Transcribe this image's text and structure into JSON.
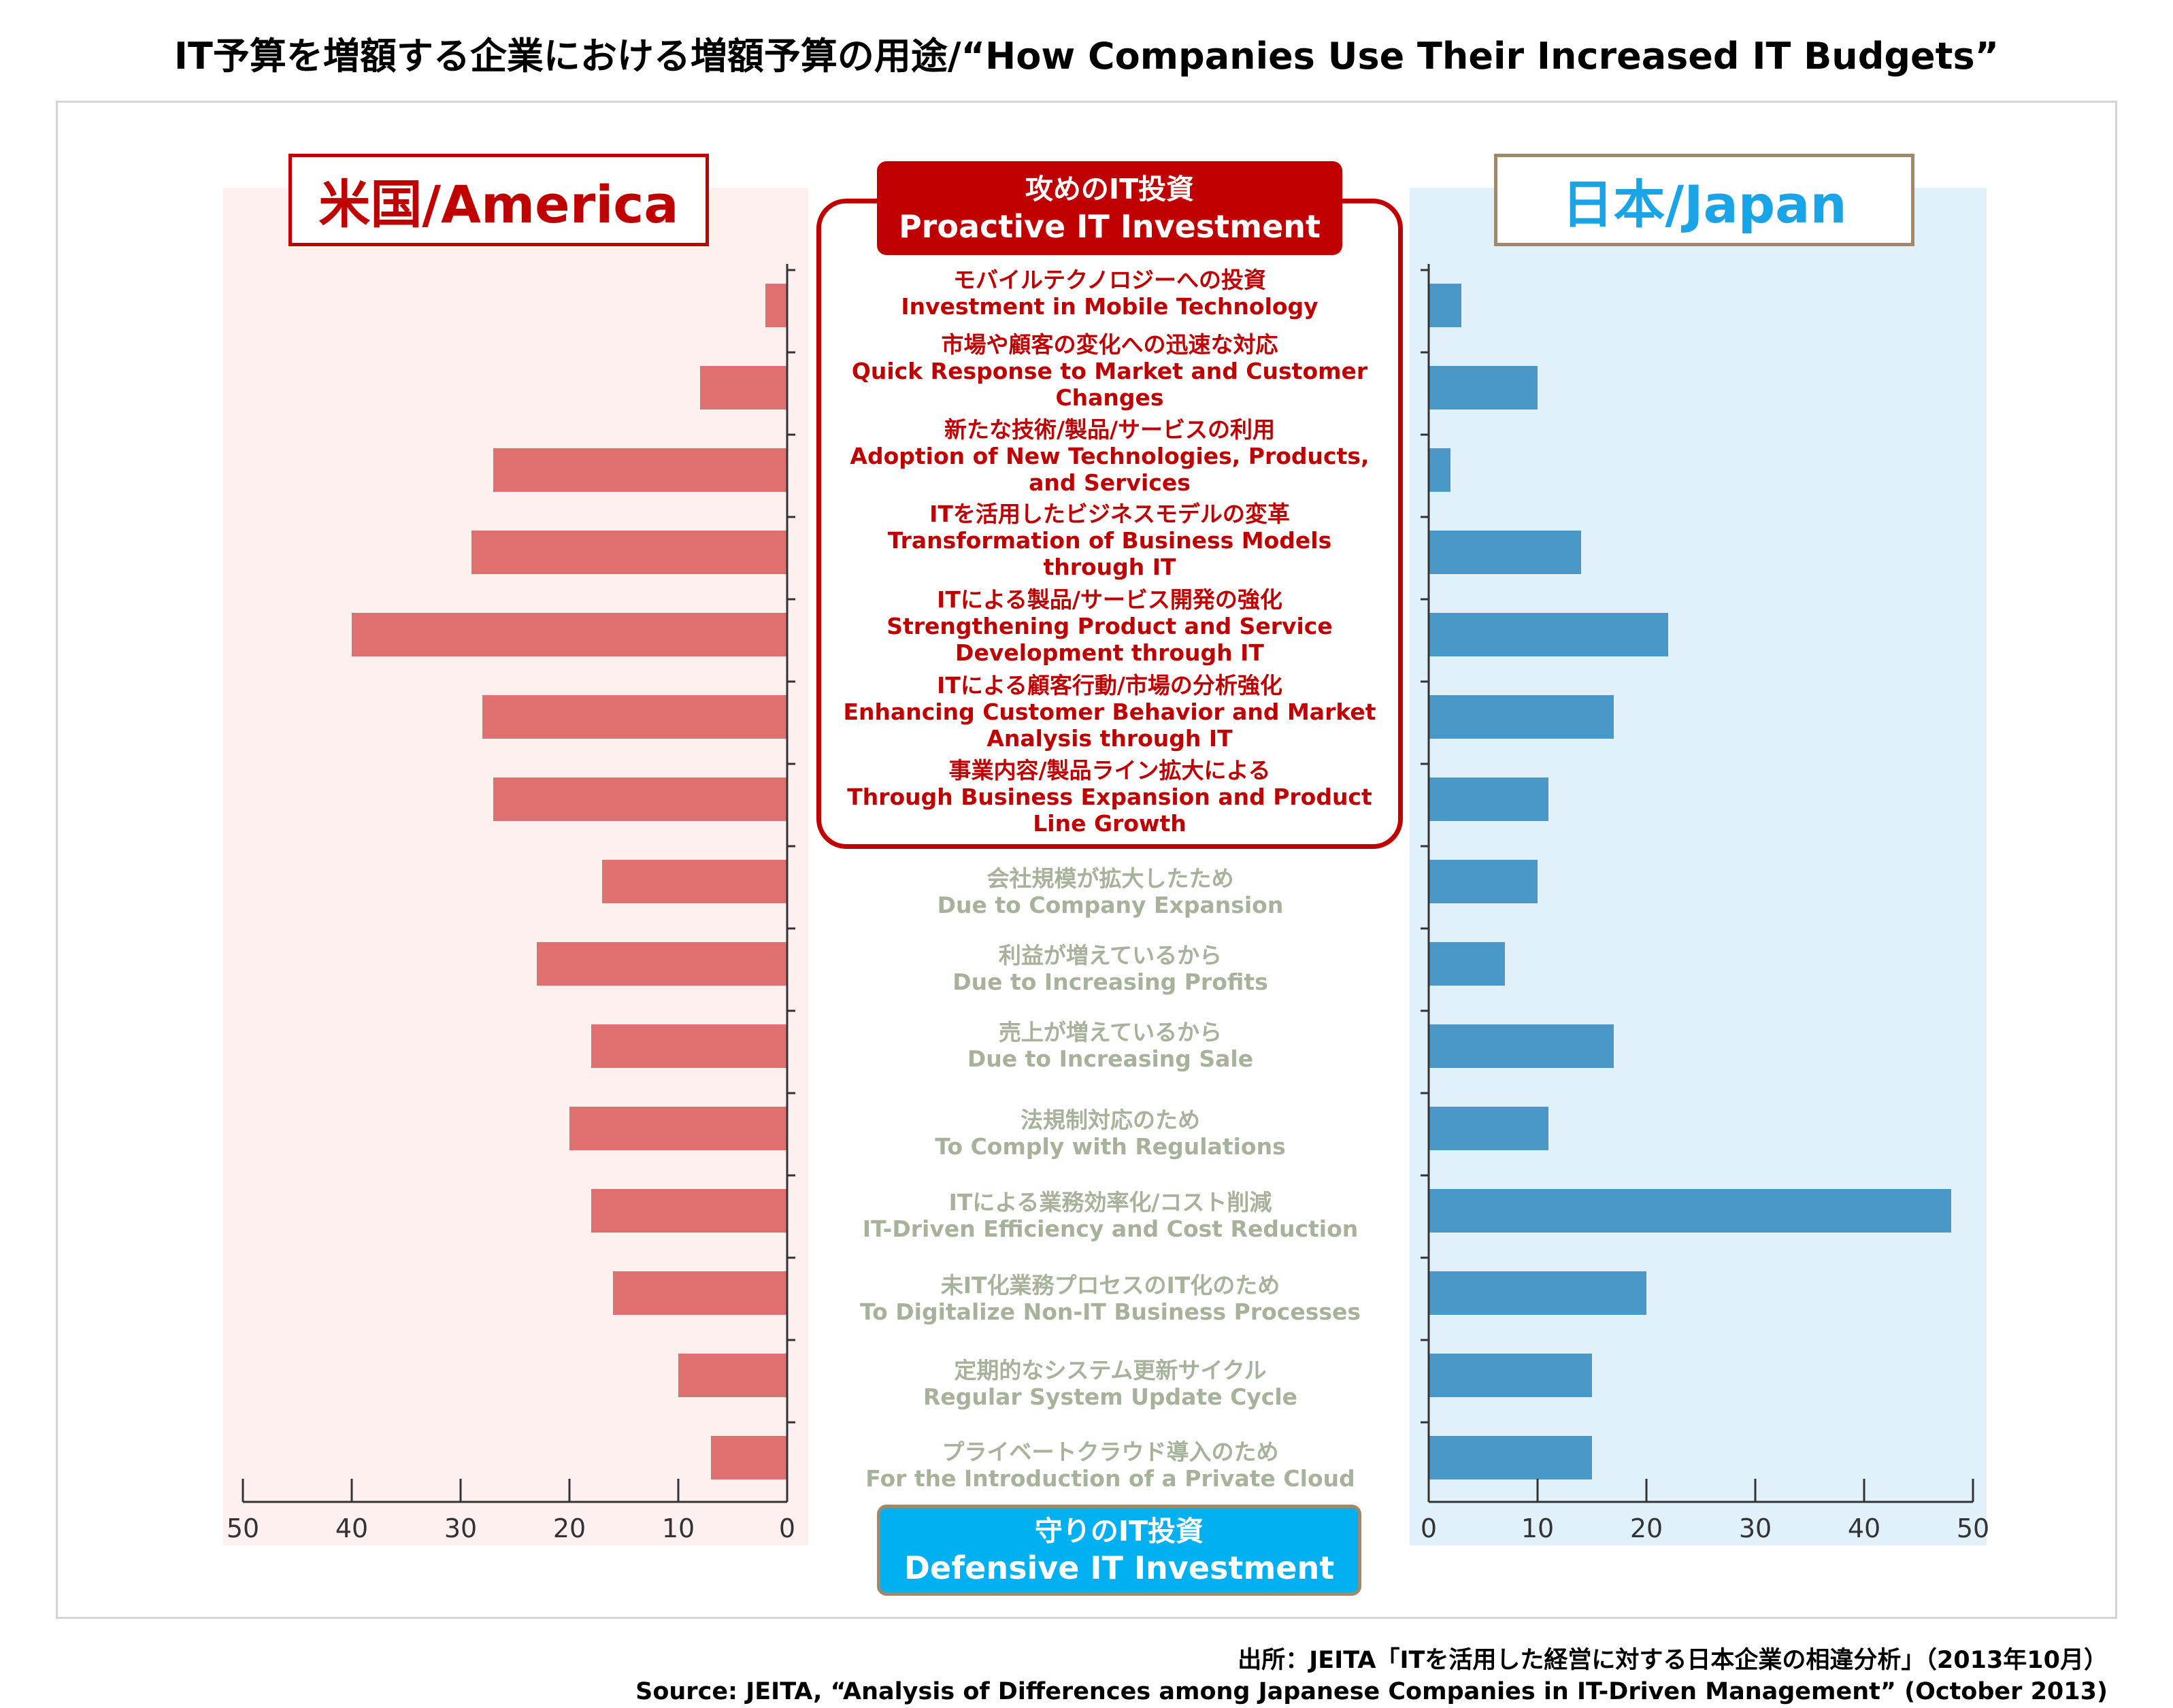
{
  "title": "IT予算を増額する企業における増額予算の用途/“How Companies Use Their Increased IT Budgets”",
  "panels": {
    "america": "米国/America",
    "japan": "日本/Japan"
  },
  "groups": {
    "proactive": {
      "jp": "攻めのIT投資",
      "en": "Proactive IT Investment"
    },
    "defensive": {
      "jp": "守りのIT投資",
      "en": "Defensive IT Investment"
    }
  },
  "source": {
    "jp": "出所：JEITA「ITを活用した経営に対する日本企業の相違分析」（2013年10月）",
    "en": "Source: JEITA, “Analysis of Differences among Japanese Companies in IT-Driven Management” (October 2013)"
  },
  "colors": {
    "america_bar": "#e07070",
    "japan_bar": "#4a98c8",
    "america_bg": "#fff0f0",
    "japan_bg": "#e1f1fc",
    "proactive": "#c00000",
    "defensive": "#00b0f0",
    "defensive_text": "#a6b39a"
  },
  "chart_data": {
    "type": "bar",
    "orientation": "horizontal",
    "categories": [
      {
        "jp": "モバイルテクノロジーへの投資",
        "en": "Investment in Mobile Technology",
        "group": "proactive"
      },
      {
        "jp": "市場や顧客の変化への迅速な対応",
        "en": "Quick Response to Market and Customer Changes",
        "group": "proactive"
      },
      {
        "jp": "新たな技術/製品/サービスの利用",
        "en": "Adoption of New Technologies, Products, and Services",
        "group": "proactive"
      },
      {
        "jp": "ITを活用したビジネスモデルの変革",
        "en": "Transformation of Business Models through IT",
        "group": "proactive"
      },
      {
        "jp": "ITによる製品/サービス開発の強化",
        "en": "Strengthening Product and Service Development through IT",
        "group": "proactive"
      },
      {
        "jp": "ITによる顧客行動/市場の分析強化",
        "en": "Enhancing Customer Behavior and Market Analysis through IT",
        "group": "proactive"
      },
      {
        "jp": "事業内容/製品ライン拡大による",
        "en": "Through Business Expansion and Product Line Growth",
        "group": "proactive"
      },
      {
        "jp": "会社規模が拡大したため",
        "en": "Due to Company Expansion",
        "group": "defensive"
      },
      {
        "jp": "利益が増えているから",
        "en": "Due to Increasing Profits",
        "group": "defensive"
      },
      {
        "jp": "売上が増えているから",
        "en": "Due to Increasing Sale",
        "group": "defensive"
      },
      {
        "jp": "法規制対応のため",
        "en": "To Comply with Regulations",
        "group": "defensive"
      },
      {
        "jp": "ITによる業務効率化/コスト削減",
        "en": "IT-Driven Efficiency and Cost Reduction",
        "group": "defensive"
      },
      {
        "jp": "未IT化業務プロセスのIT化のため",
        "en": "To Digitalize Non-IT Business Processes",
        "group": "defensive"
      },
      {
        "jp": "定期的なシステム更新サイクル",
        "en": "Regular System Update Cycle",
        "group": "defensive"
      },
      {
        "jp": "プライベートクラウド導入のため",
        "en": "For the Introduction of a Private Cloud",
        "group": "defensive"
      }
    ],
    "series": [
      {
        "name": "米国/America",
        "values": [
          2,
          8,
          27,
          29,
          40,
          28,
          27,
          17,
          23,
          18,
          20,
          18,
          16,
          10,
          7
        ]
      },
      {
        "name": "日本/Japan",
        "values": [
          3,
          10,
          2,
          14,
          22,
          17,
          11,
          10,
          7,
          17,
          11,
          48,
          20,
          15,
          15
        ]
      }
    ],
    "xlim": [
      0,
      50
    ],
    "ticks": [
      "0",
      "10",
      "20",
      "30",
      "40",
      "50"
    ],
    "grid": false
  }
}
